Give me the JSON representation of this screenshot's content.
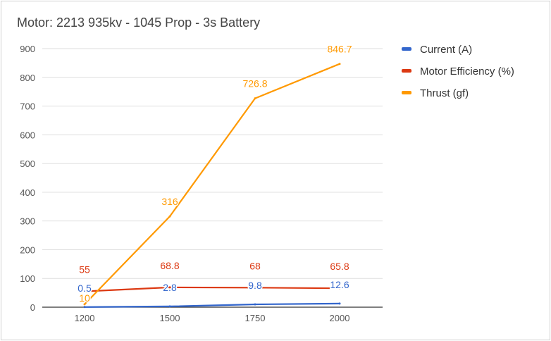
{
  "chart_data": {
    "type": "line",
    "title": "Motor: 2213 935kv - 1045 Prop - 3s Battery",
    "categories": [
      "1200",
      "1500",
      "1750",
      "2000"
    ],
    "ylim": [
      0,
      900
    ],
    "yticks": [
      "0",
      "100",
      "200",
      "300",
      "400",
      "500",
      "600",
      "700",
      "800",
      "900"
    ],
    "grid": true,
    "legend_position": "right",
    "series": [
      {
        "name": "Current (A)",
        "color": "#3366cc",
        "values": [
          0.5,
          2.8,
          9.8,
          12.6
        ],
        "labels": [
          "0.5",
          "2.8",
          "9.8",
          "12.6"
        ]
      },
      {
        "name": "Motor Efficiency (%)",
        "color": "#dc3912",
        "values": [
          55,
          68.8,
          68,
          65.8
        ],
        "labels": [
          "55",
          "68.8",
          "68",
          "65.8"
        ]
      },
      {
        "name": "Thrust (gf)",
        "color": "#ff9900",
        "values": [
          10,
          316,
          726.8,
          846.7
        ],
        "labels": [
          "10",
          "316",
          "726.8",
          "846.7"
        ]
      }
    ]
  }
}
